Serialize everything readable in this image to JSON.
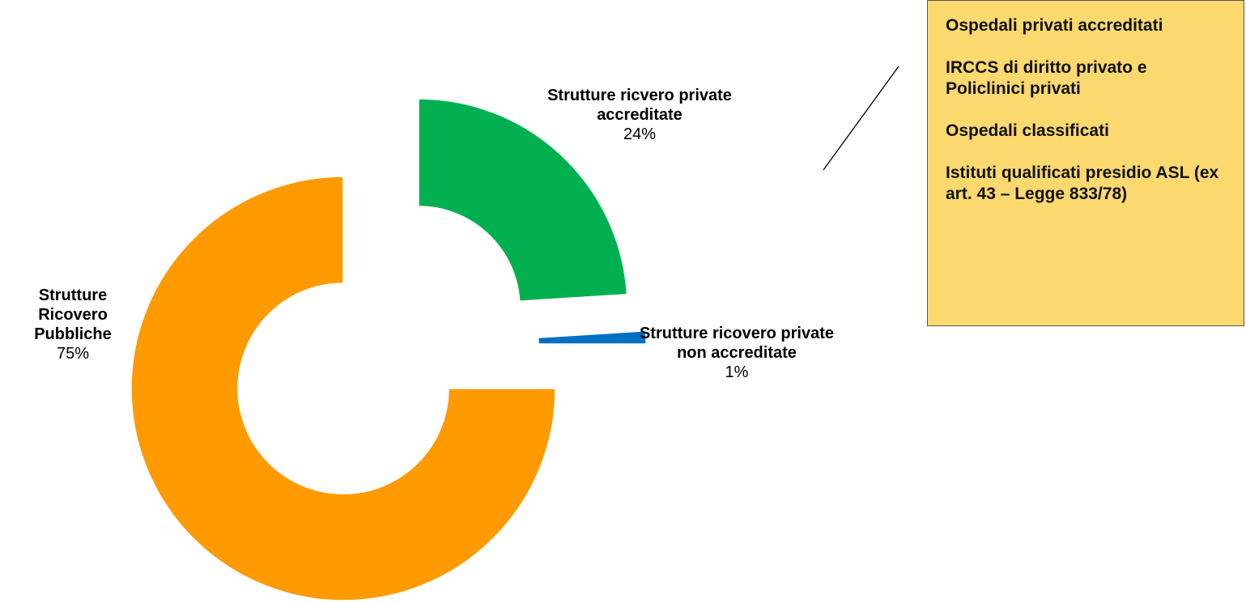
{
  "chart_data": {
    "type": "pie",
    "variant": "exploded-donut",
    "slices": [
      {
        "label": "Strutture ricvero private accreditate",
        "value": 24,
        "display_value": "24%",
        "color": "#00b050"
      },
      {
        "label": "Strutture ricovero private non accreditate",
        "value": 1,
        "display_value": "1%",
        "color": "#0070c0"
      },
      {
        "label": "Strutture Ricovero Pubbliche",
        "value": 75,
        "display_value": "75%",
        "color": "#ff9a00"
      }
    ],
    "start_angle_deg": 0,
    "direction": "clockwise",
    "label_labels_bold": true
  },
  "labels": {
    "public_name": "Strutture Ricovero Pubbliche",
    "public_pct": "75%",
    "private_acc_name": "Strutture ricvero private accreditate",
    "private_acc_pct": "24%",
    "private_nonacc_name": "Strutture ricovero private non accreditate",
    "private_nonacc_pct": "1%"
  },
  "info_box": {
    "items": [
      "Ospedali privati accreditati",
      "IRCCS di diritto privato e Policlinici privati",
      "Ospedali classificati",
      "Istituti qualificati presidio ASL (ex art. 43 – Legge 833/78)"
    ],
    "background": "#fbd96e"
  }
}
